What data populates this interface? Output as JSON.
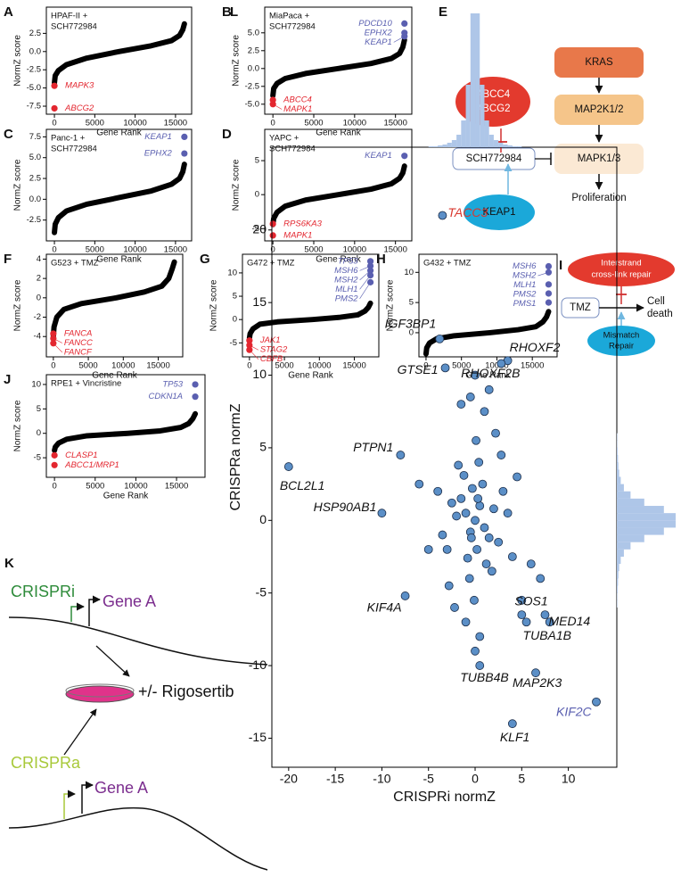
{
  "chart_data": [
    {
      "panel": "A",
      "type": "rank",
      "title_lines": [
        "HPAF-II +",
        "SCH772984"
      ],
      "xlabel": "Gene Rank",
      "ylabel": "NormZ score",
      "xlim": [
        -1000,
        17000
      ],
      "xticks": [
        0,
        5000,
        10000,
        15000
      ],
      "ylim": [
        -8.6,
        6.1
      ],
      "yticks": [
        2.5,
        {
          "value": 0,
          "label": "0.0"
        },
        -2.5,
        {
          "value": -5,
          "label": "-5.0"
        },
        -7.5
      ],
      "curve": {
        "x": [
          0,
          100,
          500,
          1500,
          4000,
          8000,
          12000,
          14500,
          15500,
          15900,
          16100
        ],
        "y": [
          -4.3,
          -3.3,
          -2.6,
          -1.8,
          -0.9,
          0,
          0.8,
          1.5,
          2.2,
          3,
          3.8
        ]
      },
      "points": [
        {
          "label": "MAPK3",
          "color": "#e3262f",
          "x": 0,
          "y": -4.7
        },
        {
          "label": "ABCG2",
          "color": "#e3262f",
          "x": 0,
          "y": -7.8
        }
      ]
    },
    {
      "panel": "B",
      "type": "rank",
      "title_lines": [
        "MiaPaca +",
        "SCH772984"
      ],
      "xlabel": "Gene Rank",
      "ylabel": "NormZ score",
      "xlim": [
        -1000,
        17000
      ],
      "xticks": [
        0,
        5000,
        10000,
        15000
      ],
      "ylim": [
        -6.4,
        8.6
      ],
      "yticks": [
        {
          "value": 5,
          "label": "5.0"
        },
        2.5,
        {
          "value": 0,
          "label": "0.0"
        },
        -2.5,
        {
          "value": -5,
          "label": "-5.0"
        }
      ],
      "curve": {
        "x": [
          0,
          100,
          500,
          1500,
          4000,
          8000,
          12000,
          14500,
          15500,
          15900,
          16100
        ],
        "y": [
          -3.8,
          -2.8,
          -2.1,
          -1.4,
          -0.7,
          0,
          0.7,
          1.4,
          2.1,
          3,
          4
        ]
      },
      "points": [
        {
          "label": "PDCD10",
          "color": "#5a5fb0",
          "x": 16100,
          "y": 6.3
        },
        {
          "label": "EPHX2",
          "color": "#5a5fb0",
          "x": 16100,
          "y": 5
        },
        {
          "label": "KEAP1",
          "color": "#5a5fb0",
          "x": 16100,
          "y": 4.5
        },
        {
          "label": "ABCC4",
          "color": "#e3262f",
          "x": 0,
          "y": -4.4
        },
        {
          "label": "MAPK1",
          "color": "#e3262f",
          "x": 0,
          "y": -5
        }
      ]
    },
    {
      "panel": "C",
      "type": "rank",
      "title_lines": [
        "Panc-1 +",
        "SCH772984"
      ],
      "xlabel": "Gene Rank",
      "ylabel": "NormZ score",
      "xlim": [
        -1000,
        17000
      ],
      "xticks": [
        0,
        5000,
        10000,
        15000
      ],
      "ylim": [
        -5,
        8.4
      ],
      "yticks": [
        7.5,
        {
          "value": 5,
          "label": "5.0"
        },
        2.5,
        {
          "value": 0,
          "label": "0.0"
        },
        -2.5
      ],
      "curve": {
        "x": [
          0,
          100,
          500,
          1500,
          4000,
          8000,
          12000,
          14500,
          15500,
          15900,
          16100
        ],
        "y": [
          -4,
          -3,
          -2.2,
          -1.4,
          -0.6,
          0.2,
          1,
          1.8,
          2.5,
          3.3,
          4.2
        ]
      },
      "points": [
        {
          "label": "KEAP1",
          "color": "#5a5fb0",
          "x": 16100,
          "y": 7.5
        },
        {
          "label": "EPHX2",
          "color": "#5a5fb0",
          "x": 16100,
          "y": 5.5
        }
      ]
    },
    {
      "panel": "D",
      "type": "rank",
      "title_lines": [
        "YAPC +",
        "SCH772984"
      ],
      "xlabel": "Gene Rank",
      "ylabel": "NormZ score",
      "xlim": [
        -1000,
        17000
      ],
      "xticks": [
        0,
        5000,
        10000,
        15000
      ],
      "ylim": [
        -6.8,
        9.6
      ],
      "yticks": [
        5,
        0,
        -5
      ],
      "curve": {
        "x": [
          0,
          100,
          500,
          1500,
          4000,
          8000,
          12000,
          14500,
          15500,
          15900,
          16100
        ],
        "y": [
          -4.4,
          -3.5,
          -2.6,
          -1.7,
          -0.8,
          0,
          0.8,
          1.6,
          2.4,
          3.2,
          4.2
        ]
      },
      "points": [
        {
          "label": "KEAP1",
          "color": "#5a5fb0",
          "x": 16100,
          "y": 5.7
        },
        {
          "label": "RPS6KA3",
          "color": "#e3262f",
          "x": 0,
          "y": -4.3
        },
        {
          "label": "MAPK1",
          "color": "#e3262f",
          "x": 0,
          "y": -6
        }
      ]
    },
    {
      "panel": "F",
      "type": "rank",
      "title_lines": [
        "G523 + TMZ"
      ],
      "xlabel": "Gene Rank",
      "ylabel": "NormZ score",
      "xlim": [
        -1000,
        18500
      ],
      "xticks": [
        0,
        5000,
        10000,
        15000
      ],
      "ylim": [
        -6.1,
        4.5
      ],
      "yticks": [
        4,
        2,
        0,
        -2,
        -4
      ],
      "curve": {
        "x": [
          0,
          100,
          500,
          1500,
          4000,
          9000,
          13000,
          15500,
          16500,
          17000,
          17300
        ],
        "y": [
          -4,
          -3,
          -2,
          -1.2,
          -0.6,
          0,
          0.6,
          1.2,
          2,
          3,
          3.7
        ]
      },
      "points": [
        {
          "label": "FANCA",
          "color": "#e3262f",
          "x": 0,
          "y": -3.7
        },
        {
          "label": "FANCC",
          "color": "#e3262f",
          "x": 0,
          "y": -4.2
        },
        {
          "label": "FANCF",
          "color": "#e3262f",
          "x": 0,
          "y": -4.7
        }
      ]
    },
    {
      "panel": "G",
      "type": "rank",
      "title_lines": [
        "G472 + TMZ"
      ],
      "xlabel": "Gene Rank",
      "ylabel": "NormZ score",
      "xlim": [
        -1000,
        18500
      ],
      "xticks": [
        0,
        5000,
        10000,
        15000
      ],
      "ylim": [
        -8,
        14
      ],
      "yticks": [
        10,
        5,
        0,
        -5
      ],
      "curve": {
        "x": [
          0,
          100,
          500,
          1500,
          4000,
          9000,
          13000,
          15500,
          16500,
          17000,
          17300
        ],
        "y": [
          -4,
          -3,
          -2,
          -1,
          -0.5,
          0,
          0.5,
          1,
          1.8,
          2.6,
          3.5
        ]
      },
      "points": [
        {
          "label": "TP53",
          "color": "#5a5fb0",
          "x": 17300,
          "y": 12.5
        },
        {
          "label": "MSH6",
          "color": "#5a5fb0",
          "x": 17300,
          "y": 11.5
        },
        {
          "label": "MSH2",
          "color": "#5a5fb0",
          "x": 17300,
          "y": 10.5
        },
        {
          "label": "MLH1",
          "color": "#5a5fb0",
          "x": 17300,
          "y": 9.5
        },
        {
          "label": "PMS2",
          "color": "#5a5fb0",
          "x": 17300,
          "y": 8
        },
        {
          "label": "JAK1",
          "color": "#e3262f",
          "x": 0,
          "y": -4.5
        },
        {
          "label": "STAG2",
          "color": "#e3262f",
          "x": 0,
          "y": -5.5
        },
        {
          "label": "CBFB",
          "color": "#e3262f",
          "x": 0,
          "y": -6.5
        }
      ]
    },
    {
      "panel": "H",
      "type": "rank",
      "title_lines": [
        "G432 + TMZ"
      ],
      "xlabel": "Gene Rank",
      "ylabel": "NormZ score",
      "xlim": [
        -1000,
        18500
      ],
      "xticks": [
        0,
        5000,
        10000,
        15000
      ],
      "ylim": [
        -4,
        13
      ],
      "yticks": [
        10,
        5,
        0
      ],
      "curve": {
        "x": [
          0,
          100,
          500,
          1500,
          4000,
          9000,
          13000,
          15500,
          16500,
          17000,
          17300
        ],
        "y": [
          -3.5,
          -2.5,
          -1.7,
          -1,
          -0.5,
          0,
          0.5,
          1,
          1.8,
          2.6,
          3.5
        ]
      },
      "points": [
        {
          "label": "MSH6",
          "color": "#5a5fb0",
          "x": 17300,
          "y": 11
        },
        {
          "label": "MSH2",
          "color": "#5a5fb0",
          "x": 17300,
          "y": 10
        },
        {
          "label": "MLH1",
          "color": "#5a5fb0",
          "x": 17300,
          "y": 8
        },
        {
          "label": "PMS2",
          "color": "#5a5fb0",
          "x": 17300,
          "y": 6.5
        },
        {
          "label": "PMS1",
          "color": "#5a5fb0",
          "x": 17300,
          "y": 5
        }
      ]
    },
    {
      "panel": "J",
      "type": "rank",
      "title_lines": [
        "RPE1 + Vincristine"
      ],
      "xlabel": "Gene Rank",
      "ylabel": "NormZ score",
      "xlim": [
        -1000,
        18500
      ],
      "xticks": [
        0,
        5000,
        10000,
        15000
      ],
      "ylim": [
        -9,
        12
      ],
      "yticks": [
        10,
        5,
        0,
        -5
      ],
      "curve": {
        "x": [
          0,
          100,
          500,
          1500,
          4000,
          9000,
          13000,
          15500,
          16500,
          17000,
          17300
        ],
        "y": [
          -3.5,
          -2.8,
          -2,
          -1.2,
          -0.5,
          0,
          0.5,
          1.2,
          2,
          3,
          4
        ]
      },
      "points": [
        {
          "label": "TP53",
          "color": "#5a5fb0",
          "x": 17300,
          "y": 10
        },
        {
          "label": "CDKN1A",
          "color": "#5a5fb0",
          "x": 17300,
          "y": 7.5
        },
        {
          "label": "CLASP1",
          "color": "#e3262f",
          "x": 0,
          "y": -4.5
        },
        {
          "label": "ABCC1/MRP1",
          "color": "#e3262f",
          "x": 0,
          "y": -6.5
        }
      ]
    },
    {
      "panel": "L",
      "type": "scatter",
      "xlabel": "CRISPRi normZ",
      "ylabel": "CRISPRa normZ",
      "color": "#5b8fc7",
      "xlim": [
        -21.8,
        15.2
      ],
      "xticks": [
        -20,
        -15,
        -10,
        -5,
        0,
        5,
        10
      ],
      "ylim": [
        -17,
        25.7
      ],
      "yticks": [
        -15,
        -10,
        -5,
        0,
        5,
        10,
        15,
        20
      ],
      "x": [
        -1,
        -0.5,
        0,
        0.5,
        1,
        -1.5,
        1.5,
        -2,
        2,
        0.2,
        -0.3,
        0.8,
        -0.8,
        1.2,
        -1.2,
        2.5,
        -2.5,
        3,
        -3,
        0.4,
        -0.6,
        1.8,
        -1.8,
        0.1,
        -0.1,
        3.5,
        -3.5,
        4,
        -4,
        2.2,
        -2.2,
        1,
        -1,
        0.5,
        -0.5,
        6,
        5,
        -5,
        -6,
        7,
        2.8,
        -2.8,
        1.5,
        -1.5,
        0,
        0,
        0.3,
        -0.4,
        8,
        4.5
      ],
      "y": [
        0.5,
        -0.8,
        0,
        1,
        -0.5,
        1.5,
        -1.2,
        0.3,
        0.8,
        -2,
        2.2,
        2.5,
        -2.6,
        -3,
        3.1,
        -1.5,
        1.2,
        2,
        -2,
        4,
        -4,
        -3.5,
        3.8,
        5.5,
        -5.5,
        0.5,
        -1,
        -2.5,
        2,
        6,
        -6,
        7.5,
        -7,
        -8,
        8.5,
        -3,
        -6.5,
        -2,
        2.5,
        -4,
        4.5,
        -4.5,
        9,
        8,
        -9,
        10,
        1.5,
        -1.2,
        -7,
        3
      ],
      "labeled": [
        {
          "label": "TACC3",
          "color": "#d9382f",
          "x": -3.5,
          "y": 21
        },
        {
          "label": "IGF3BP1",
          "color": "#111111",
          "x": -3.8,
          "y": 12.5
        },
        {
          "label": "GTSE1",
          "color": "#111111",
          "x": -3.2,
          "y": 10.5
        },
        {
          "label": "RHOXF2",
          "color": "#111111",
          "x": 3.5,
          "y": 11
        },
        {
          "label": "RHOXF2B",
          "color": "#111111",
          "x": 2.8,
          "y": 10.8
        },
        {
          "label": "PTPN1",
          "color": "#111111",
          "x": -8,
          "y": 4.5
        },
        {
          "label": "BCL2L1",
          "color": "#111111",
          "x": -20,
          "y": 3.7
        },
        {
          "label": "HSP90AB1",
          "color": "#111111",
          "x": -10,
          "y": 0.5
        },
        {
          "label": "KIF4A",
          "color": "#111111",
          "x": -7.5,
          "y": -5.2
        },
        {
          "label": "SOS1",
          "color": "#111111",
          "x": 5,
          "y": -5.5
        },
        {
          "label": "MED14",
          "color": "#111111",
          "x": 7.5,
          "y": -6.5
        },
        {
          "label": "TUBA1B",
          "color": "#111111",
          "x": 5.5,
          "y": -7
        },
        {
          "label": "TUBB4B",
          "color": "#111111",
          "x": 0.5,
          "y": -10
        },
        {
          "label": "MAP2K3",
          "color": "#111111",
          "x": 6.5,
          "y": -10.5
        },
        {
          "label": "KLF1",
          "color": "#111111",
          "x": 4,
          "y": -14
        },
        {
          "label": "KIF2C",
          "color": "#5a5fb0",
          "x": 13,
          "y": -12.5
        }
      ],
      "x_hist": {
        "bins": [
          -5,
          -4.5,
          -4,
          -3.5,
          -3,
          -2.5,
          -2,
          -1.5,
          -1,
          -0.5,
          0,
          0.5,
          1,
          1.5,
          2,
          2.5,
          3,
          3.5,
          4,
          4.5,
          5
        ],
        "counts": [
          1,
          1,
          2,
          3,
          5,
          8,
          14,
          30,
          70,
          150,
          150,
          70,
          30,
          14,
          8,
          5,
          3,
          2,
          1,
          1
        ]
      },
      "y_hist": {
        "bins": [
          -6,
          -5.5,
          -5,
          -4.5,
          -4,
          -3.5,
          -3,
          -2.5,
          -2,
          -1.5,
          -1,
          -0.5,
          0,
          0.5,
          1,
          1.5,
          2,
          2.5,
          3,
          3.5,
          4,
          4.5,
          5,
          5.5,
          6
        ],
        "counts": [
          1,
          1,
          2,
          3,
          4,
          6,
          10,
          18,
          35,
          70,
          120,
          150,
          150,
          120,
          70,
          35,
          18,
          10,
          6,
          4,
          3,
          2,
          1,
          1
        ]
      },
      "hist_color": "#aec6e8"
    }
  ],
  "diagrams": {
    "E": {
      "panel": "E",
      "kras": "KRAS",
      "map2k": "MAP2K1/2",
      "mapk": "MAPK1/3",
      "proliferation": "Proliferation",
      "drug": "SCH772984",
      "transporters": [
        "ABCC4",
        "ABCG2"
      ],
      "keap1": "KEAP1"
    },
    "I": {
      "panel": "I",
      "repair": [
        "Interstrand",
        "cross-link repair"
      ],
      "drug": "TMZ",
      "outcome": [
        "Cell",
        "death"
      ],
      "mismatch": [
        "Mismatch",
        "Repair"
      ]
    },
    "K": {
      "panel": "K",
      "crispri": "CRISPRi",
      "gene_top": "Gene A",
      "treatment": "+/- Rigosertib",
      "crispra": "CRISPRa",
      "gene_bottom": "Gene A"
    }
  }
}
